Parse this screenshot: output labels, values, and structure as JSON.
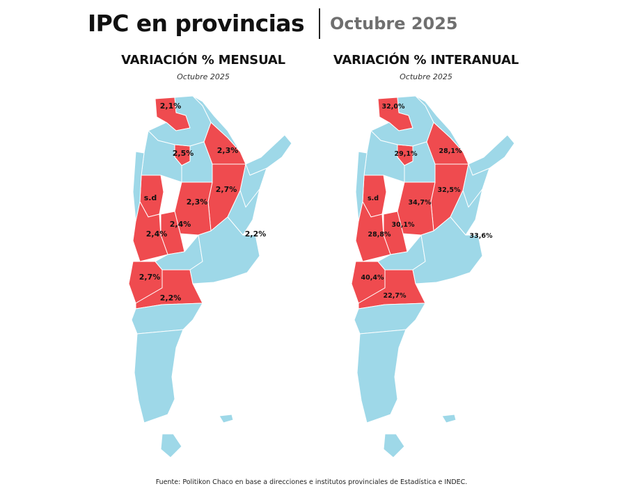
{
  "header": {
    "title": "IPC en provincias",
    "period": "Octubre 2025"
  },
  "colors": {
    "reported": "#ef4b4f",
    "not_reported": "#9ed8e8",
    "borders": "#ffffff"
  },
  "maps": [
    {
      "title": "VARIACIÓN % MENSUAL",
      "subtitle": "Octubre 2025",
      "labels": {
        "jujuy": "2,1%",
        "tucuman": "2,5%",
        "chaco": "2,3%",
        "la_rioja": "s.d",
        "cordoba": "2,3%",
        "santa_fe": "2,7%",
        "san_luis": "2,4%",
        "mendoza": "2,4%",
        "caba": "2,2%",
        "neuquen": "2,7%",
        "rio_negro": "2,2%"
      }
    },
    {
      "title": "VARIACIÓN % INTERANUAL",
      "subtitle": "Octubre 2025",
      "labels": {
        "jujuy": "32,0%",
        "tucuman": "29,1%",
        "chaco": "28,1%",
        "la_rioja": "s.d",
        "cordoba": "34,7%",
        "santa_fe": "32,5%",
        "san_luis": "30,1%",
        "mendoza": "28,8%",
        "caba": "33,6%",
        "neuquen": "40,4%",
        "rio_negro": "22,7%"
      }
    }
  ],
  "source": "Fuente: Politikon Chaco en base a direcciones e institutos provinciales de Estadística e INDEC."
}
